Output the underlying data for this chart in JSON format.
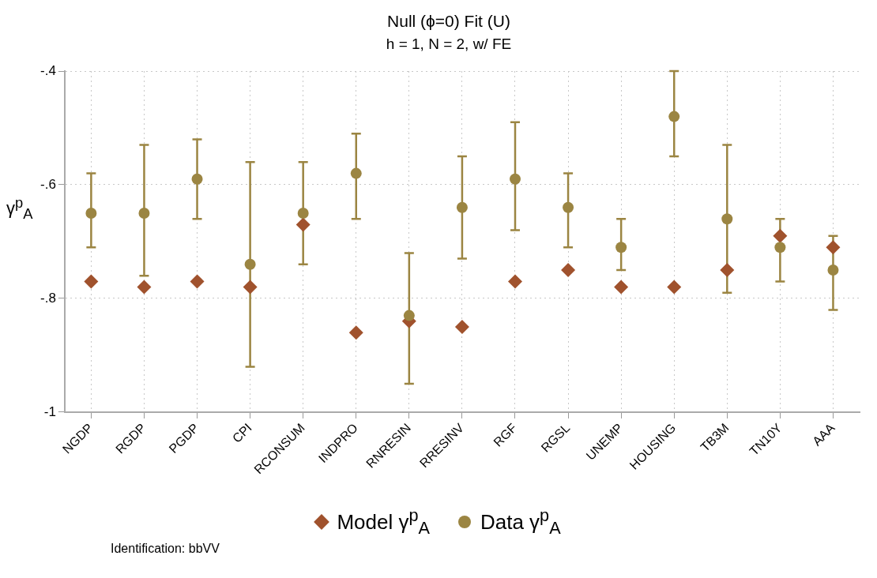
{
  "chart_data": {
    "type": "scatter",
    "title": "Null (ϕ=0) Fit (U)",
    "subtitle": "h = 1, N = 2, w/ FE",
    "ylabel": "γ$^{p}$$_{A}$",
    "categories": [
      "NGDP",
      "RGDP",
      "PGDP",
      "CPI",
      "RCONSUM",
      "INDPRO",
      "RNRESIN",
      "RRESINV",
      "RGF",
      "RGSL",
      "UNEMP",
      "HOUSING",
      "TB3M",
      "TN10Y",
      "AAA"
    ],
    "series": [
      {
        "name": "Model γ$^{p}$$_{A}$",
        "color": "#a0522d",
        "marker": "diamond",
        "values": [
          -0.77,
          -0.78,
          -0.77,
          -0.78,
          -0.67,
          -0.86,
          -0.84,
          -0.85,
          -0.77,
          -0.75,
          -0.78,
          -0.78,
          -0.75,
          -0.69,
          -0.71
        ]
      },
      {
        "name": "Data γ$^{p}$$_{A}$",
        "color": "#9b8542",
        "marker": "circle",
        "values": [
          -0.65,
          -0.65,
          -0.59,
          -0.74,
          -0.65,
          -0.58,
          -0.83,
          -0.64,
          -0.59,
          -0.64,
          -0.71,
          -0.48,
          -0.66,
          -0.71,
          -0.75
        ],
        "errors": [
          [
            -0.71,
            -0.58
          ],
          [
            -0.76,
            -0.53
          ],
          [
            -0.66,
            -0.52
          ],
          [
            -0.92,
            -0.56
          ],
          [
            -0.74,
            -0.56
          ],
          [
            -0.66,
            -0.51
          ],
          [
            -0.95,
            -0.72
          ],
          [
            -0.73,
            -0.55
          ],
          [
            -0.68,
            -0.49
          ],
          [
            -0.71,
            -0.58
          ],
          [
            -0.75,
            -0.66
          ],
          [
            -0.55,
            -0.4
          ],
          [
            -0.79,
            -0.53
          ],
          [
            -0.77,
            -0.66
          ],
          [
            -0.82,
            -0.69
          ]
        ]
      }
    ],
    "ylim": [
      -1,
      -0.4
    ],
    "yticks": [
      -1,
      {
        "value": -0.8,
        "label": "-.8"
      },
      {
        "value": -0.6,
        "label": "-.6"
      },
      {
        "value": -0.4,
        "label": "-.4"
      }
    ],
    "grid": true,
    "legend": "bottom",
    "annotations": [
      "Identification: bbVV"
    ]
  }
}
